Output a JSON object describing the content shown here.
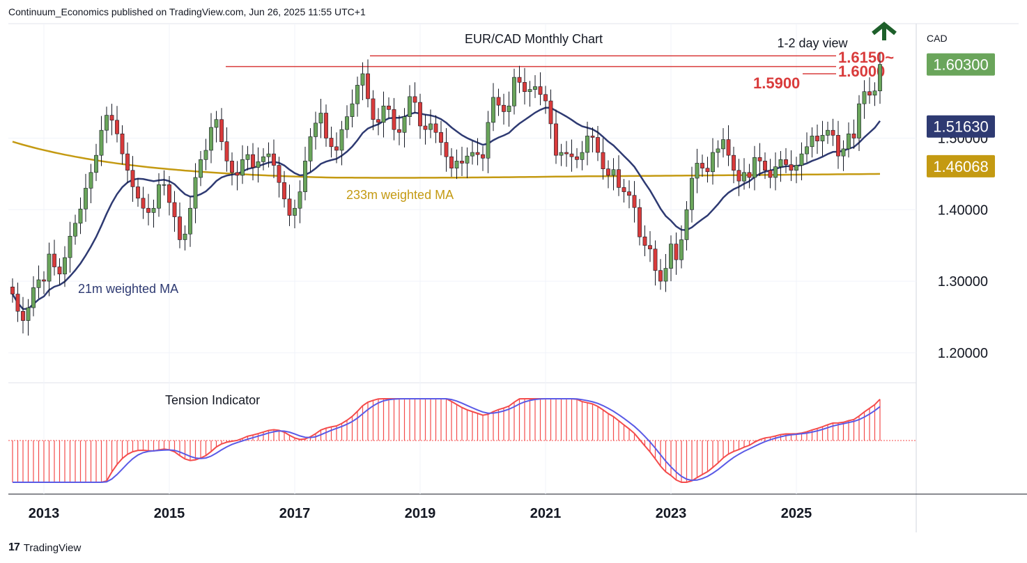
{
  "header": {
    "published": "Continuum_Economics published on TradingView.com, Jun 26, 2025 11:55 UTC+1"
  },
  "footer": {
    "brand": "TradingView",
    "logo_mark": "17"
  },
  "chart_data": {
    "type": "candlestick",
    "title": "EUR/CAD Monthly Chart",
    "currency": "CAD",
    "view_label": "1-2 day view",
    "view_arrow": "up",
    "ylim": [
      1.16,
      1.66
    ],
    "yticks": [
      "1.20000",
      "1.30000",
      "1.40000",
      "1.50000"
    ],
    "xticks": [
      "2013",
      "2015",
      "2017",
      "2019",
      "2021",
      "2023",
      "2025"
    ],
    "xtick_values": [
      2013,
      2015,
      2017,
      2019,
      2021,
      2023,
      2025
    ],
    "price_tags": [
      {
        "value": 1.603,
        "label": "1.60300",
        "color": "#6aa55b"
      },
      {
        "value": 1.5163,
        "label": "1.51630",
        "color": "#2e3a72"
      },
      {
        "value": 1.46068,
        "label": "1.46068",
        "color": "#c49a12"
      }
    ],
    "levels": [
      {
        "value": 1.615,
        "label": "1.6150~",
        "from": 2018.2
      },
      {
        "value": 1.6,
        "label": "1.6000",
        "from": 2015.9
      },
      {
        "value": 1.59,
        "label": "1.5900",
        "from": 2025.1
      }
    ],
    "ma_labels": {
      "ma21": "21m weighted MA",
      "ma233": "233m weighted MA"
    },
    "indicator_label": "Tension Indicator",
    "colors": {
      "up": "#6aa55b",
      "down": "#d93b3b",
      "ma21": "#2e3a72",
      "ma233": "#c49a12",
      "level": "#d93b3b",
      "tension": "#f44b4b",
      "signal": "#5a5ae6",
      "arrow": "#1d5f2a"
    },
    "closes": [
      1.282,
      1.258,
      1.245,
      1.263,
      1.291,
      1.302,
      1.3,
      1.338,
      1.32,
      1.31,
      1.333,
      1.363,
      1.381,
      1.401,
      1.43,
      1.452,
      1.476,
      1.511,
      1.532,
      1.525,
      1.506,
      1.478,
      1.455,
      1.432,
      1.416,
      1.402,
      1.396,
      1.402,
      1.435,
      1.435,
      1.41,
      1.39,
      1.358,
      1.366,
      1.402,
      1.445,
      1.47,
      1.483,
      1.515,
      1.526,
      1.495,
      1.468,
      1.452,
      1.448,
      1.47,
      1.477,
      1.459,
      1.467,
      1.474,
      1.478,
      1.462,
      1.438,
      1.415,
      1.392,
      1.402,
      1.425,
      1.468,
      1.502,
      1.521,
      1.535,
      1.5,
      1.488,
      1.483,
      1.512,
      1.53,
      1.548,
      1.574,
      1.59,
      1.555,
      1.526,
      1.522,
      1.545,
      1.54,
      1.512,
      1.508,
      1.53,
      1.558,
      1.55,
      1.517,
      1.512,
      1.52,
      1.508,
      1.494,
      1.474,
      1.458,
      1.468,
      1.465,
      1.475,
      1.48,
      1.477,
      1.472,
      1.522,
      1.557,
      1.546,
      1.537,
      1.545,
      1.585,
      1.578,
      1.565,
      1.568,
      1.572,
      1.561,
      1.552,
      1.52,
      1.476,
      1.48,
      1.478,
      1.474,
      1.47,
      1.48,
      1.503,
      1.501,
      1.48,
      1.457,
      1.448,
      1.456,
      1.431,
      1.425,
      1.42,
      1.403,
      1.362,
      1.35,
      1.345,
      1.315,
      1.3,
      1.318,
      1.352,
      1.33,
      1.358,
      1.4,
      1.444,
      1.465,
      1.458,
      1.453,
      1.48,
      1.485,
      1.498,
      1.476,
      1.455,
      1.44,
      1.452,
      1.445,
      1.473,
      1.468,
      1.455,
      1.445,
      1.46,
      1.47,
      1.463,
      1.455,
      1.462,
      1.478,
      1.488,
      1.503,
      1.496,
      1.504,
      1.511,
      1.504,
      1.475,
      1.485,
      1.506,
      1.5,
      1.548,
      1.565,
      1.56,
      1.566,
      1.603
    ]
  }
}
